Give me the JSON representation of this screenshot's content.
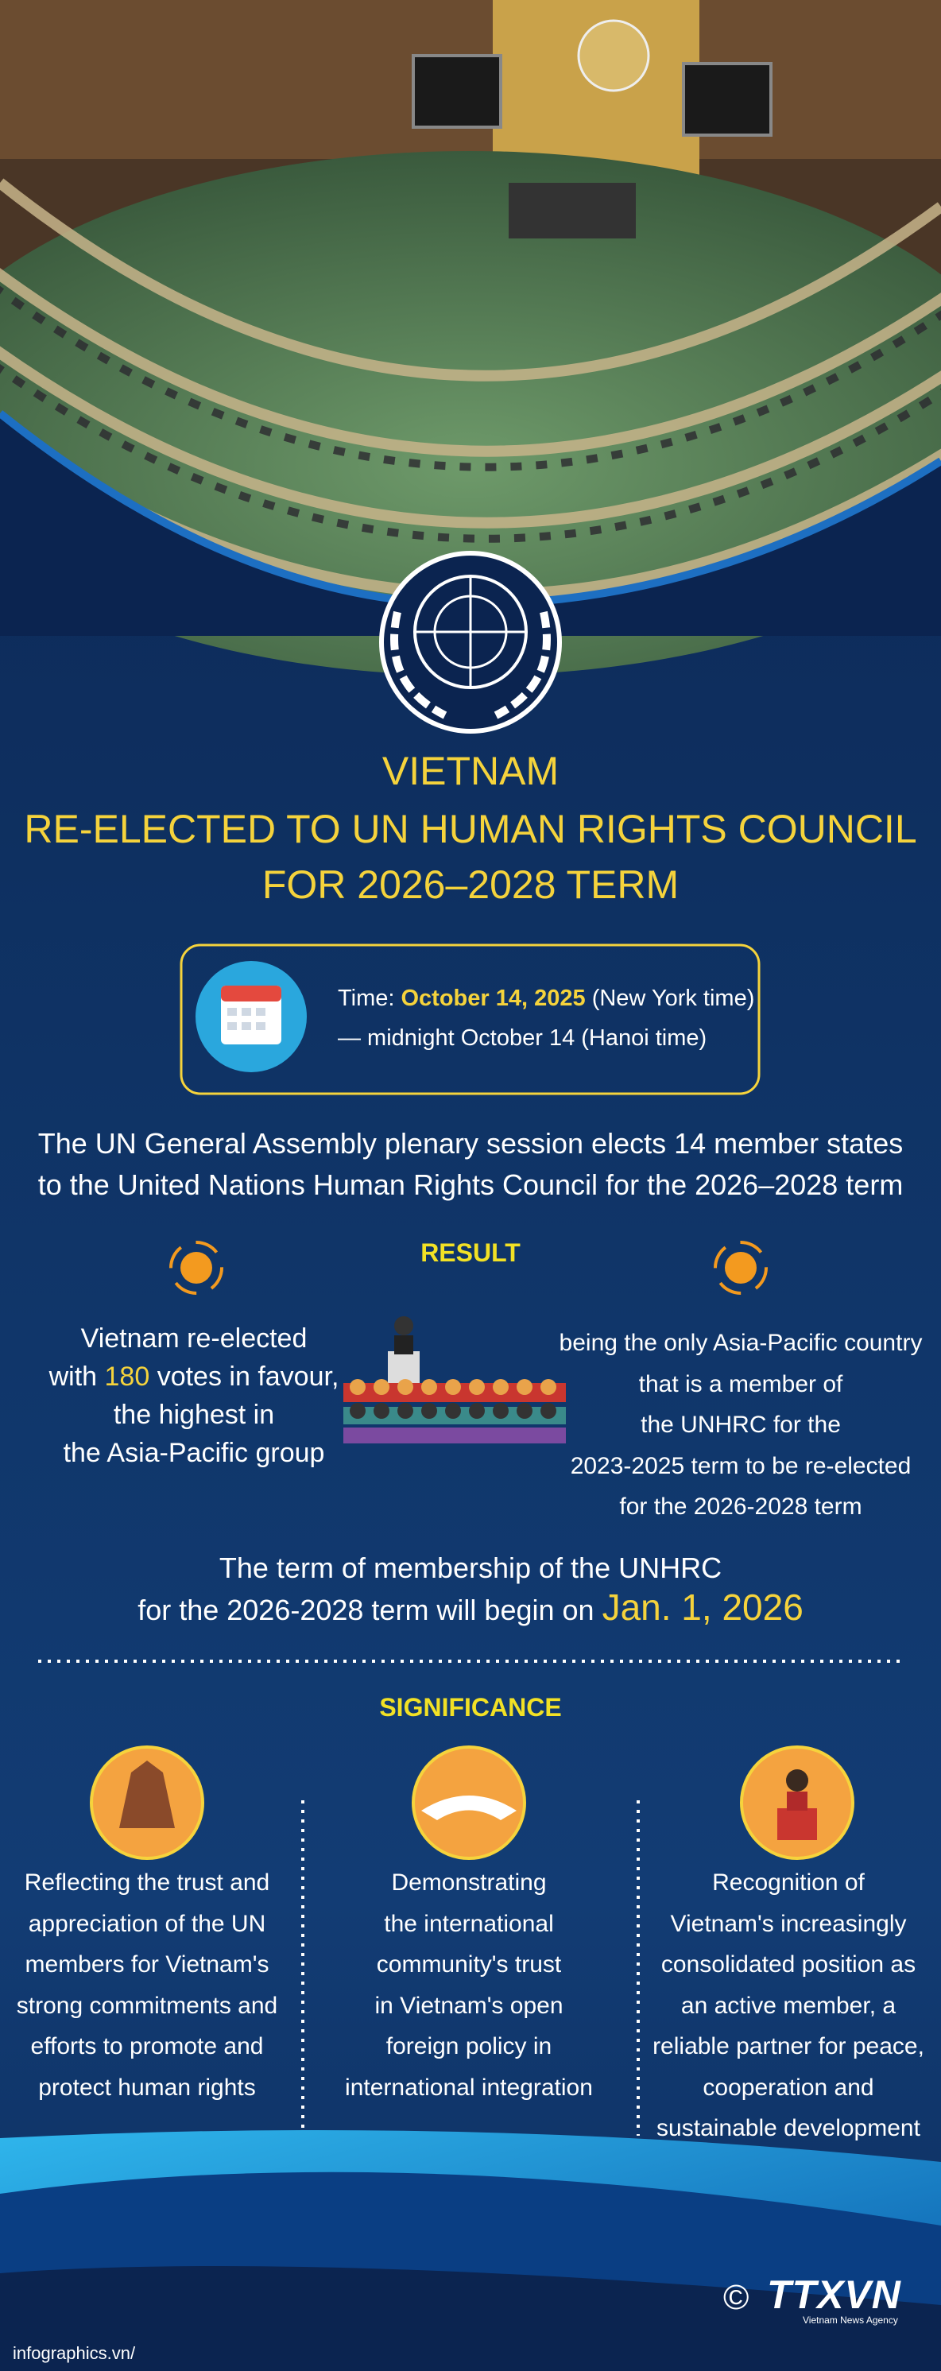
{
  "title": {
    "lines": [
      "VIETNAM",
      "RE-ELECTED TO UN HUMAN RIGHTS COUNCIL",
      "FOR 2026–2028 TERM"
    ]
  },
  "time": {
    "label": "Time:",
    "date": "October 14, 2025",
    "zone": "(New York time)",
    "hanoi": "— midnight October 14 (Hanoi time)"
  },
  "intro": {
    "lines": [
      "The UN General Assembly plenary session elects 14 member states",
      "to the United Nations Human Rights Council for the 2026–2028 term"
    ]
  },
  "result": {
    "heading": "RESULT",
    "left": {
      "line1": "Vietnam re-elected",
      "line2_prefix": "with",
      "votes": "180",
      "line2_suffix": "votes in favour,",
      "line3": "the highest in",
      "line4": "the Asia-Pacific group"
    },
    "right": {
      "lines": [
        "being the only Asia-Pacific country",
        "that is a member of",
        "the UNHRC for the",
        "2023-2025 term to be re-elected",
        "for the 2026-2028 term"
      ]
    }
  },
  "term": {
    "line1": "The term of membership of the UNHRC",
    "line2": "for the 2026-2028 term will begin on",
    "date": "Jan. 1, 2026"
  },
  "significance": {
    "heading": "SIGNIFICANCE",
    "items": [
      {
        "lines": [
          "Reflecting the trust and",
          "appreciation of the UN",
          "members for Vietnam's",
          "strong commitments and",
          "efforts to promote and",
          "protect human rights"
        ]
      },
      {
        "lines": [
          "Demonstrating",
          "the international",
          "community's trust",
          "in Vietnam's open",
          "foreign policy in",
          "international integration"
        ]
      },
      {
        "lines": [
          "Recognition of",
          "Vietnam's increasingly",
          "consolidated position as",
          "an active member, a",
          "reliable partner for peace,",
          "cooperation and",
          "sustainable development"
        ]
      }
    ]
  },
  "footer": {
    "copyright": "©",
    "brand": "TTXVN",
    "agency": "Vietnam News Agency",
    "source": "infographics.vn/"
  }
}
